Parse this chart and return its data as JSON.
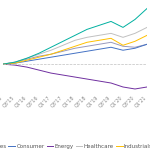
{
  "title": "",
  "x_labels": [
    "Q1'15",
    "Q3'15",
    "Q1'16",
    "Q3'16",
    "Q1'17",
    "Q3'17",
    "Q1'18",
    "Q3'18",
    "Q1'19",
    "Q3'19",
    "Q1'20",
    "Q3'20",
    "Q1'21"
  ],
  "series": {
    "Services": {
      "color": "#9999bb",
      "values": [
        0,
        0.02,
        0.05,
        0.08,
        0.1,
        0.13,
        0.16,
        0.18,
        0.2,
        0.22,
        0.18,
        0.17,
        0.2
      ]
    },
    "Consumer": {
      "color": "#4472c4",
      "values": [
        0,
        0.01,
        0.03,
        0.05,
        0.07,
        0.09,
        0.11,
        0.13,
        0.15,
        0.17,
        0.14,
        0.16,
        0.2
      ]
    },
    "Energy": {
      "color": "#7030a0",
      "values": [
        0,
        -0.01,
        -0.03,
        -0.06,
        -0.09,
        -0.11,
        -0.13,
        -0.15,
        -0.17,
        -0.19,
        -0.23,
        -0.25,
        -0.23
      ]
    },
    "Healthcare": {
      "color": "#c0c0c0",
      "values": [
        0,
        0.02,
        0.06,
        0.1,
        0.14,
        0.19,
        0.24,
        0.27,
        0.29,
        0.31,
        0.27,
        0.31,
        0.37
      ]
    },
    "Industrials": {
      "color": "#ffc000",
      "values": [
        0,
        0.01,
        0.04,
        0.07,
        0.1,
        0.14,
        0.18,
        0.22,
        0.24,
        0.26,
        0.19,
        0.23,
        0.29
      ]
    },
    "Tech": {
      "color": "#00b0a0",
      "values": [
        0,
        0.02,
        0.06,
        0.11,
        0.17,
        0.23,
        0.29,
        0.35,
        0.39,
        0.43,
        0.37,
        0.45,
        0.56
      ]
    }
  },
  "hline_y": 0,
  "hline_color": "#c0c0c0",
  "hline_style": "--",
  "background_color": "#ffffff",
  "legend_fontsize": 4.0,
  "tick_fontsize": 3.5,
  "linewidth": 0.7,
  "figsize": [
    1.5,
    1.5
  ],
  "dpi": 100
}
